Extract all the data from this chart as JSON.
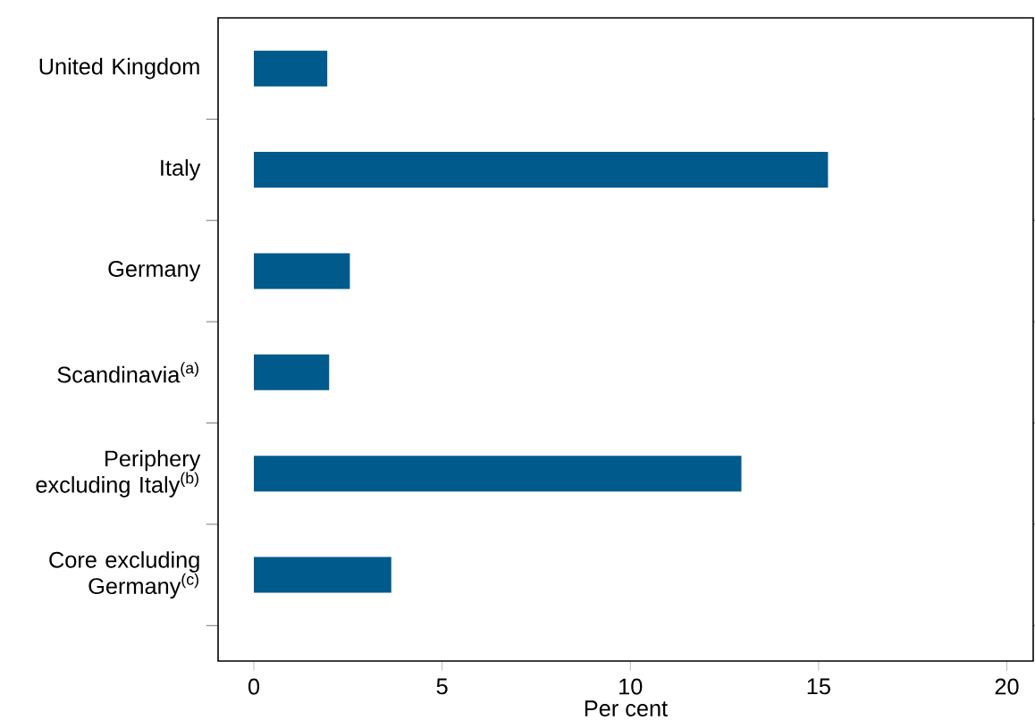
{
  "chart_data": {
    "type": "bar",
    "orientation": "horizontal",
    "xlabel": "Per cent",
    "categories": [
      "United Kingdom",
      "Italy",
      "Germany",
      "Scandinavia$^{(a)}$",
      "Periphery excluding Italy$^{(b)}$",
      "Core excluding Germany$^{(c)}$"
    ],
    "values": [
      1.95,
      15.25,
      2.55,
      2.0,
      12.95,
      3.65
    ],
    "color": "#005a8c",
    "xlim": [
      -0.95,
      20.7
    ],
    "xticks": [
      0,
      5,
      10,
      15,
      20
    ],
    "grid": false
  }
}
